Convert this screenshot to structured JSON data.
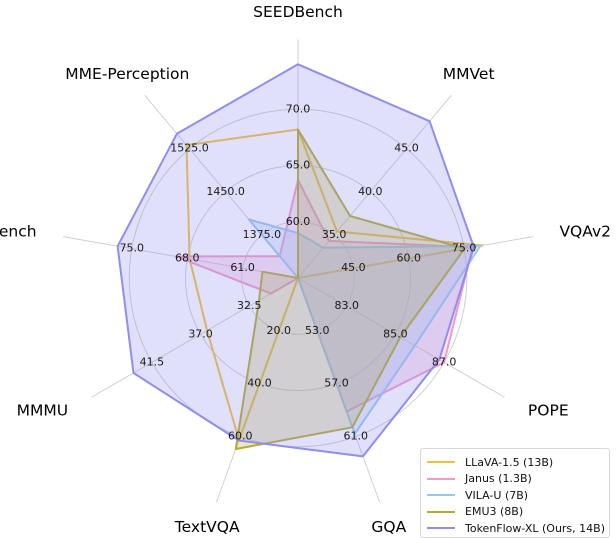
{
  "chart_data": {
    "type": "radar",
    "title": "",
    "axes": [
      "SEEDBench",
      "MMVet",
      "VQAv2",
      "POPE",
      "GQA",
      "TextVQA",
      "MMMU",
      "MMBench",
      "MME-Perception"
    ],
    "ticks": [
      [
        "60.0",
        "65.0",
        "70.0"
      ],
      [
        "35.0",
        "40.0",
        "45.0"
      ],
      [
        "45.0",
        "60.0",
        "75.0"
      ],
      [
        "83.0",
        "85.0",
        "87.0"
      ],
      [
        "53.0",
        "57.0",
        "61.0"
      ],
      [
        "20.0",
        "40.0",
        "60.0"
      ],
      [
        "32.5",
        "37.0",
        "41.5"
      ],
      [
        "61.0",
        "68.0",
        "75.0"
      ],
      [
        "1375.0",
        "1450.0",
        "1525.0"
      ]
    ],
    "ranges": [
      [
        55,
        75
      ],
      [
        30,
        50
      ],
      [
        30,
        90
      ],
      [
        81,
        89
      ],
      [
        49,
        65
      ],
      [
        0,
        80
      ],
      [
        28,
        46
      ],
      [
        54,
        82
      ],
      [
        1300,
        1600
      ]
    ],
    "series": [
      {
        "name": "LLaVA-1.5 (13B)",
        "color": "#f3c13a",
        "fill": false,
        "values": [
          68.2,
          35.4,
          80.0,
          81.0,
          49.0,
          61.3,
          36.4,
          67.7,
          1531.3
        ]
      },
      {
        "name": "Janus (1.3B)",
        "color": "#f29ac8",
        "fill": true,
        "values": [
          63.7,
          34.3,
          77.3,
          87.0,
          59.1,
          0.0,
          30.5,
          69.4,
          1338.0
        ]
      },
      {
        "name": "VILA-U (7B)",
        "color": "#9cc6ee",
        "fill": true,
        "values": [
          59.0,
          33.5,
          79.4,
          85.8,
          60.8,
          0.0,
          28.0,
          54.0,
          1401.8
        ]
      },
      {
        "name": "EMU3 (8B)",
        "color": "#b5ac2e",
        "fill": true,
        "values": [
          68.2,
          37.2,
          75.1,
          85.2,
          60.3,
          64.7,
          31.6,
          58.5,
          1300.0
        ]
      },
      {
        "name": "TokenFlow-XL (Ours, 14B)",
        "color": "#8e8ef0",
        "fill": true,
        "values": [
          74.0,
          48.2,
          77.6,
          86.8,
          62.5,
          61.5,
          43.2,
          76.8,
          1551.1
        ]
      }
    ],
    "grid": true,
    "legend": "bottom-right"
  }
}
